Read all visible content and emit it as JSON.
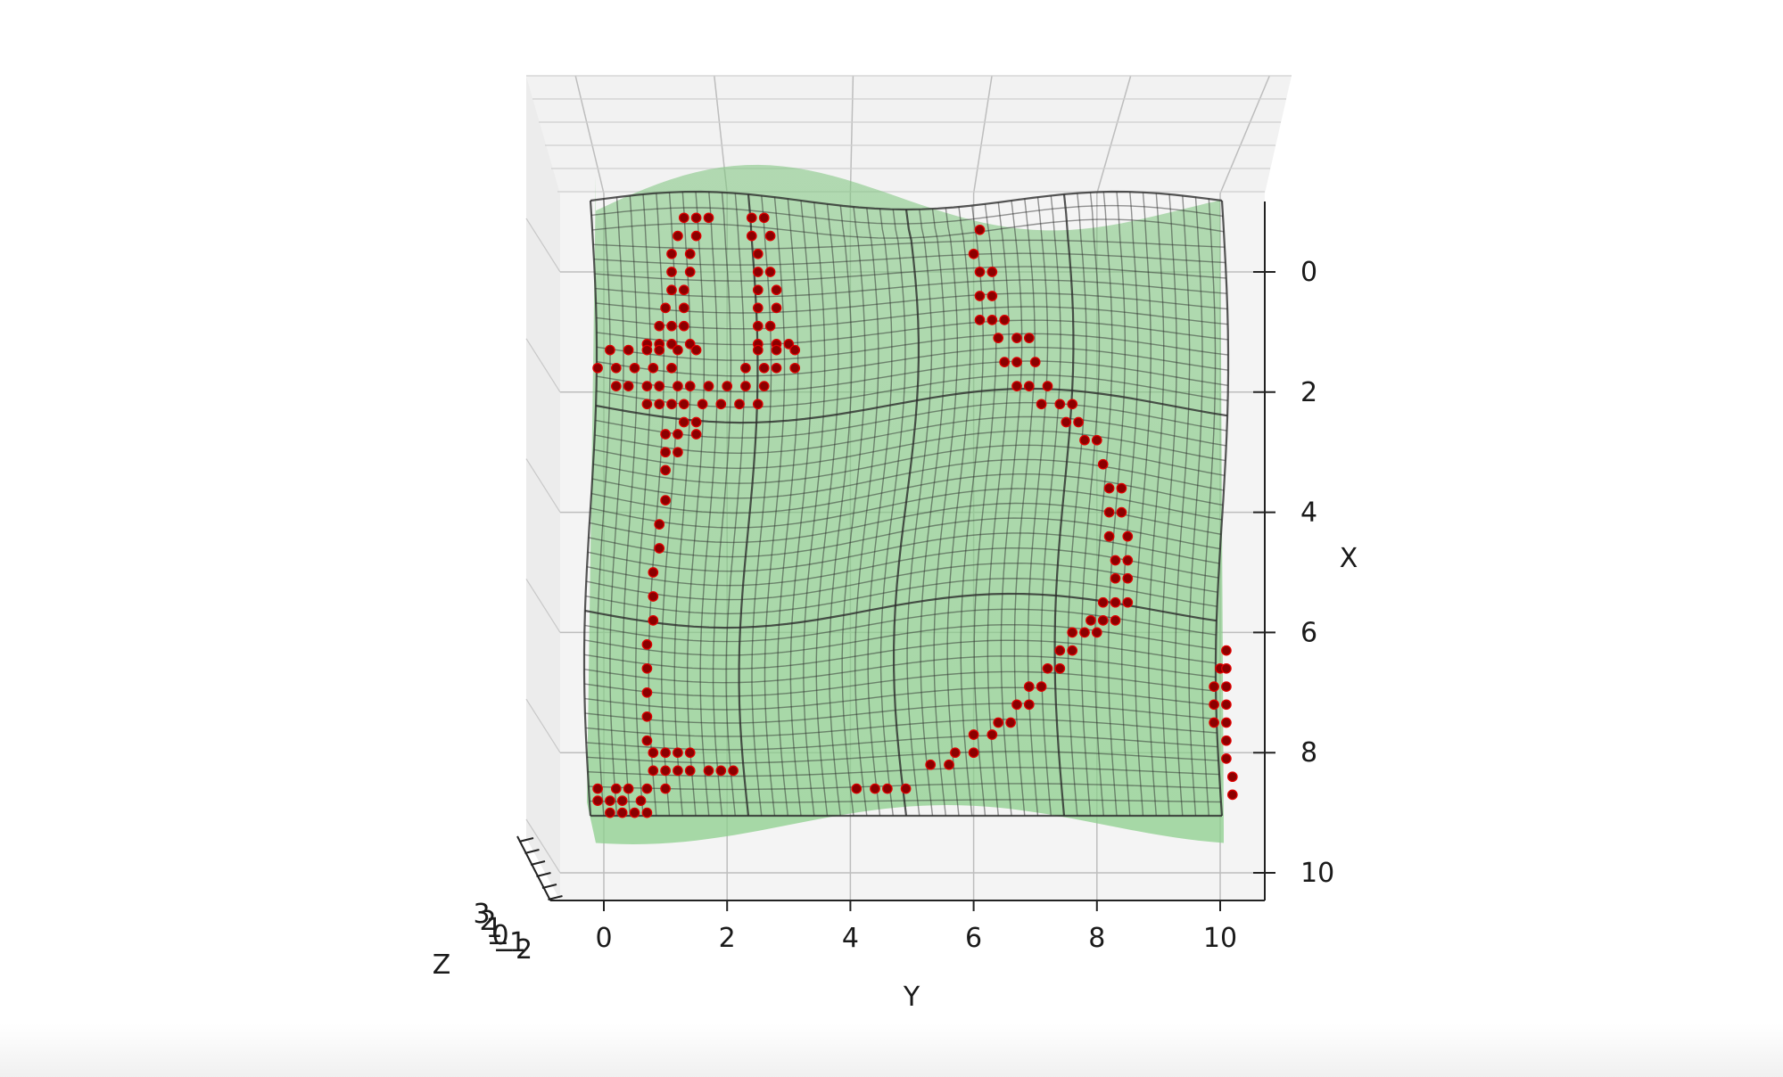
{
  "chart_data": {
    "type": "surface3d",
    "xlabel": "Y",
    "ylabel": "X",
    "zlabel": "Z",
    "title": "",
    "y_ticks": [
      "0",
      "2",
      "4",
      "6",
      "8",
      "10"
    ],
    "x_ticks": [
      "0",
      "2",
      "4",
      "6",
      "8",
      "10"
    ],
    "z_ticks": [
      "3",
      "2",
      "1",
      "0",
      "−1",
      "−2"
    ],
    "ylim": [
      -0.9,
      10.8
    ],
    "xlim": [
      -0.8,
      10.9
    ],
    "grid": true,
    "series": [
      {
        "kind": "smooth-surface",
        "color": "#7cc47c",
        "values": []
      },
      {
        "kind": "wireframe-grid",
        "color": "#2b2b2b",
        "values": []
      },
      {
        "kind": "scatter",
        "color": "#8b0000",
        "edge_color": "#e00000",
        "points": [
          [
            1.3,
            -0.9
          ],
          [
            1.5,
            -0.9
          ],
          [
            1.7,
            -0.9
          ],
          [
            2.4,
            -0.9
          ],
          [
            2.6,
            -0.9
          ],
          [
            1.2,
            -0.6
          ],
          [
            1.5,
            -0.6
          ],
          [
            2.4,
            -0.6
          ],
          [
            2.7,
            -0.6
          ],
          [
            1.1,
            -0.3
          ],
          [
            1.4,
            -0.3
          ],
          [
            2.5,
            -0.3
          ],
          [
            1.1,
            0.0
          ],
          [
            1.4,
            0.0
          ],
          [
            2.5,
            0.0
          ],
          [
            2.7,
            0.0
          ],
          [
            1.1,
            0.3
          ],
          [
            1.3,
            0.3
          ],
          [
            2.5,
            0.3
          ],
          [
            2.8,
            0.3
          ],
          [
            1.0,
            0.6
          ],
          [
            1.3,
            0.6
          ],
          [
            2.5,
            0.6
          ],
          [
            2.8,
            0.6
          ],
          [
            0.9,
            0.9
          ],
          [
            1.1,
            0.9
          ],
          [
            1.3,
            0.9
          ],
          [
            2.5,
            0.9
          ],
          [
            2.7,
            0.9
          ],
          [
            0.7,
            1.2
          ],
          [
            0.9,
            1.2
          ],
          [
            1.1,
            1.2
          ],
          [
            1.4,
            1.2
          ],
          [
            2.5,
            1.2
          ],
          [
            2.8,
            1.2
          ],
          [
            3.0,
            1.2
          ],
          [
            0.1,
            1.3
          ],
          [
            0.4,
            1.3
          ],
          [
            0.7,
            1.3
          ],
          [
            0.9,
            1.3
          ],
          [
            1.2,
            1.3
          ],
          [
            1.5,
            1.3
          ],
          [
            2.5,
            1.3
          ],
          [
            2.8,
            1.3
          ],
          [
            3.1,
            1.3
          ],
          [
            -0.1,
            1.6
          ],
          [
            0.2,
            1.6
          ],
          [
            0.5,
            1.6
          ],
          [
            0.8,
            1.6
          ],
          [
            1.1,
            1.6
          ],
          [
            2.3,
            1.6
          ],
          [
            2.6,
            1.6
          ],
          [
            2.8,
            1.6
          ],
          [
            3.1,
            1.6
          ],
          [
            0.2,
            1.9
          ],
          [
            0.4,
            1.9
          ],
          [
            0.7,
            1.9
          ],
          [
            0.9,
            1.9
          ],
          [
            1.2,
            1.9
          ],
          [
            1.4,
            1.9
          ],
          [
            1.7,
            1.9
          ],
          [
            2.0,
            1.9
          ],
          [
            2.3,
            1.9
          ],
          [
            2.6,
            1.9
          ],
          [
            0.7,
            2.2
          ],
          [
            0.9,
            2.2
          ],
          [
            1.1,
            2.2
          ],
          [
            1.3,
            2.2
          ],
          [
            1.6,
            2.2
          ],
          [
            1.9,
            2.2
          ],
          [
            2.2,
            2.2
          ],
          [
            2.5,
            2.2
          ],
          [
            1.3,
            2.5
          ],
          [
            1.5,
            2.5
          ],
          [
            1.0,
            2.7
          ],
          [
            1.2,
            2.7
          ],
          [
            1.5,
            2.7
          ],
          [
            1.0,
            3.0
          ],
          [
            1.2,
            3.0
          ],
          [
            1.0,
            3.3
          ],
          [
            1.0,
            3.8
          ],
          [
            0.9,
            4.2
          ],
          [
            0.9,
            4.6
          ],
          [
            0.8,
            5.0
          ],
          [
            0.8,
            5.4
          ],
          [
            0.8,
            5.8
          ],
          [
            0.7,
            6.2
          ],
          [
            0.7,
            6.6
          ],
          [
            0.7,
            7.0
          ],
          [
            0.7,
            7.4
          ],
          [
            0.7,
            7.8
          ],
          [
            0.8,
            8.0
          ],
          [
            1.0,
            8.0
          ],
          [
            1.2,
            8.0
          ],
          [
            1.4,
            8.0
          ],
          [
            0.8,
            8.3
          ],
          [
            1.0,
            8.3
          ],
          [
            1.2,
            8.3
          ],
          [
            1.4,
            8.3
          ],
          [
            1.7,
            8.3
          ],
          [
            1.9,
            8.3
          ],
          [
            2.1,
            8.3
          ],
          [
            -0.1,
            8.6
          ],
          [
            0.2,
            8.6
          ],
          [
            0.4,
            8.6
          ],
          [
            0.7,
            8.6
          ],
          [
            1.0,
            8.6
          ],
          [
            -0.1,
            8.8
          ],
          [
            0.1,
            8.8
          ],
          [
            0.3,
            8.8
          ],
          [
            0.6,
            8.8
          ],
          [
            0.1,
            9.0
          ],
          [
            0.3,
            9.0
          ],
          [
            0.5,
            9.0
          ],
          [
            0.7,
            9.0
          ],
          [
            6.1,
            -0.7
          ],
          [
            6.0,
            -0.3
          ],
          [
            6.1,
            0.0
          ],
          [
            6.3,
            0.0
          ],
          [
            6.1,
            0.4
          ],
          [
            6.3,
            0.4
          ],
          [
            6.1,
            0.8
          ],
          [
            6.3,
            0.8
          ],
          [
            6.5,
            0.8
          ],
          [
            6.4,
            1.1
          ],
          [
            6.7,
            1.1
          ],
          [
            6.9,
            1.1
          ],
          [
            6.5,
            1.5
          ],
          [
            6.7,
            1.5
          ],
          [
            7.0,
            1.5
          ],
          [
            6.7,
            1.9
          ],
          [
            6.9,
            1.9
          ],
          [
            7.2,
            1.9
          ],
          [
            7.1,
            2.2
          ],
          [
            7.4,
            2.2
          ],
          [
            7.6,
            2.2
          ],
          [
            7.5,
            2.5
          ],
          [
            7.7,
            2.5
          ],
          [
            7.8,
            2.8
          ],
          [
            8.0,
            2.8
          ],
          [
            8.1,
            3.2
          ],
          [
            8.2,
            3.6
          ],
          [
            8.4,
            3.6
          ],
          [
            8.2,
            4.0
          ],
          [
            8.4,
            4.0
          ],
          [
            8.2,
            4.4
          ],
          [
            8.5,
            4.4
          ],
          [
            8.3,
            4.8
          ],
          [
            8.5,
            4.8
          ],
          [
            8.3,
            5.1
          ],
          [
            8.5,
            5.1
          ],
          [
            8.1,
            5.5
          ],
          [
            8.3,
            5.5
          ],
          [
            8.5,
            5.5
          ],
          [
            7.9,
            5.8
          ],
          [
            8.1,
            5.8
          ],
          [
            8.3,
            5.8
          ],
          [
            7.6,
            6.0
          ],
          [
            7.8,
            6.0
          ],
          [
            8.0,
            6.0
          ],
          [
            7.4,
            6.3
          ],
          [
            7.6,
            6.3
          ],
          [
            7.2,
            6.6
          ],
          [
            7.4,
            6.6
          ],
          [
            6.9,
            6.9
          ],
          [
            7.1,
            6.9
          ],
          [
            6.7,
            7.2
          ],
          [
            6.9,
            7.2
          ],
          [
            6.4,
            7.5
          ],
          [
            6.6,
            7.5
          ],
          [
            6.0,
            7.7
          ],
          [
            6.3,
            7.7
          ],
          [
            5.7,
            8.0
          ],
          [
            6.0,
            8.0
          ],
          [
            5.3,
            8.2
          ],
          [
            5.6,
            8.2
          ],
          [
            4.1,
            8.6
          ],
          [
            4.4,
            8.6
          ],
          [
            4.6,
            8.6
          ],
          [
            4.9,
            8.6
          ],
          [
            10.1,
            6.3
          ],
          [
            10.0,
            6.6
          ],
          [
            10.1,
            6.6
          ],
          [
            9.9,
            6.9
          ],
          [
            10.1,
            6.9
          ],
          [
            9.9,
            7.2
          ],
          [
            10.1,
            7.2
          ],
          [
            9.9,
            7.5
          ],
          [
            10.1,
            7.5
          ],
          [
            10.1,
            7.8
          ],
          [
            10.1,
            8.1
          ],
          [
            10.2,
            8.4
          ],
          [
            10.2,
            8.7
          ]
        ]
      }
    ]
  }
}
